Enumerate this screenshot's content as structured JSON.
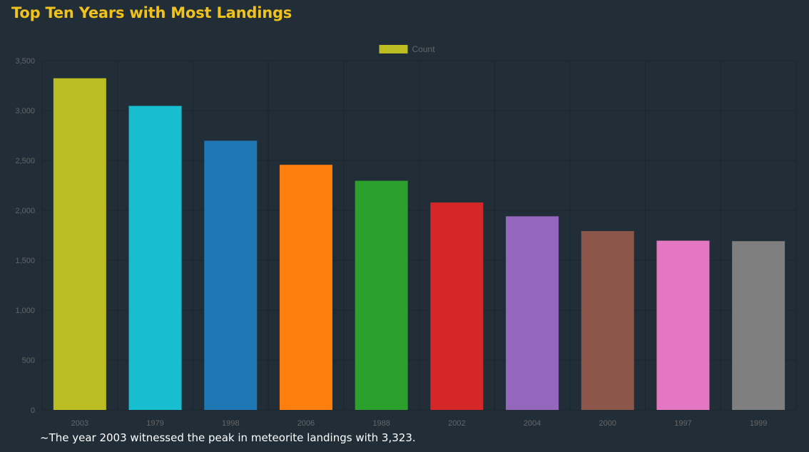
{
  "title": "Top Ten Years with Most Landings",
  "caption": "~The year 2003 witnessed the peak in meteorite landings with 3,323.",
  "colors": {
    "background": "#212e37",
    "title": "#f0c21b",
    "axis_text": "#666666",
    "grid": "#1b262e"
  },
  "chart_data": {
    "type": "bar",
    "categories": [
      "2003",
      "1979",
      "1998",
      "2006",
      "1988",
      "2002",
      "2004",
      "2000",
      "1997",
      "1999"
    ],
    "series": [
      {
        "name": "Count",
        "values": [
          3323,
          3046,
          2697,
          2456,
          2296,
          2078,
          1940,
          1792,
          1696,
          1691
        ]
      }
    ],
    "bar_colors": [
      "#bcbd22",
      "#17becf",
      "#1f77b4",
      "#ff7f0e",
      "#2ca02c",
      "#d62728",
      "#9467bd",
      "#8c564b",
      "#e377c2",
      "#7f7f7f"
    ],
    "legend": {
      "label": "Count",
      "color": "#bcbd22",
      "position": "top"
    },
    "y_ticks": [
      "0",
      "500",
      "1,000",
      "1,500",
      "2,000",
      "2,500",
      "3,000",
      "3,500"
    ],
    "ylim": [
      0,
      3500
    ],
    "grid": true
  }
}
